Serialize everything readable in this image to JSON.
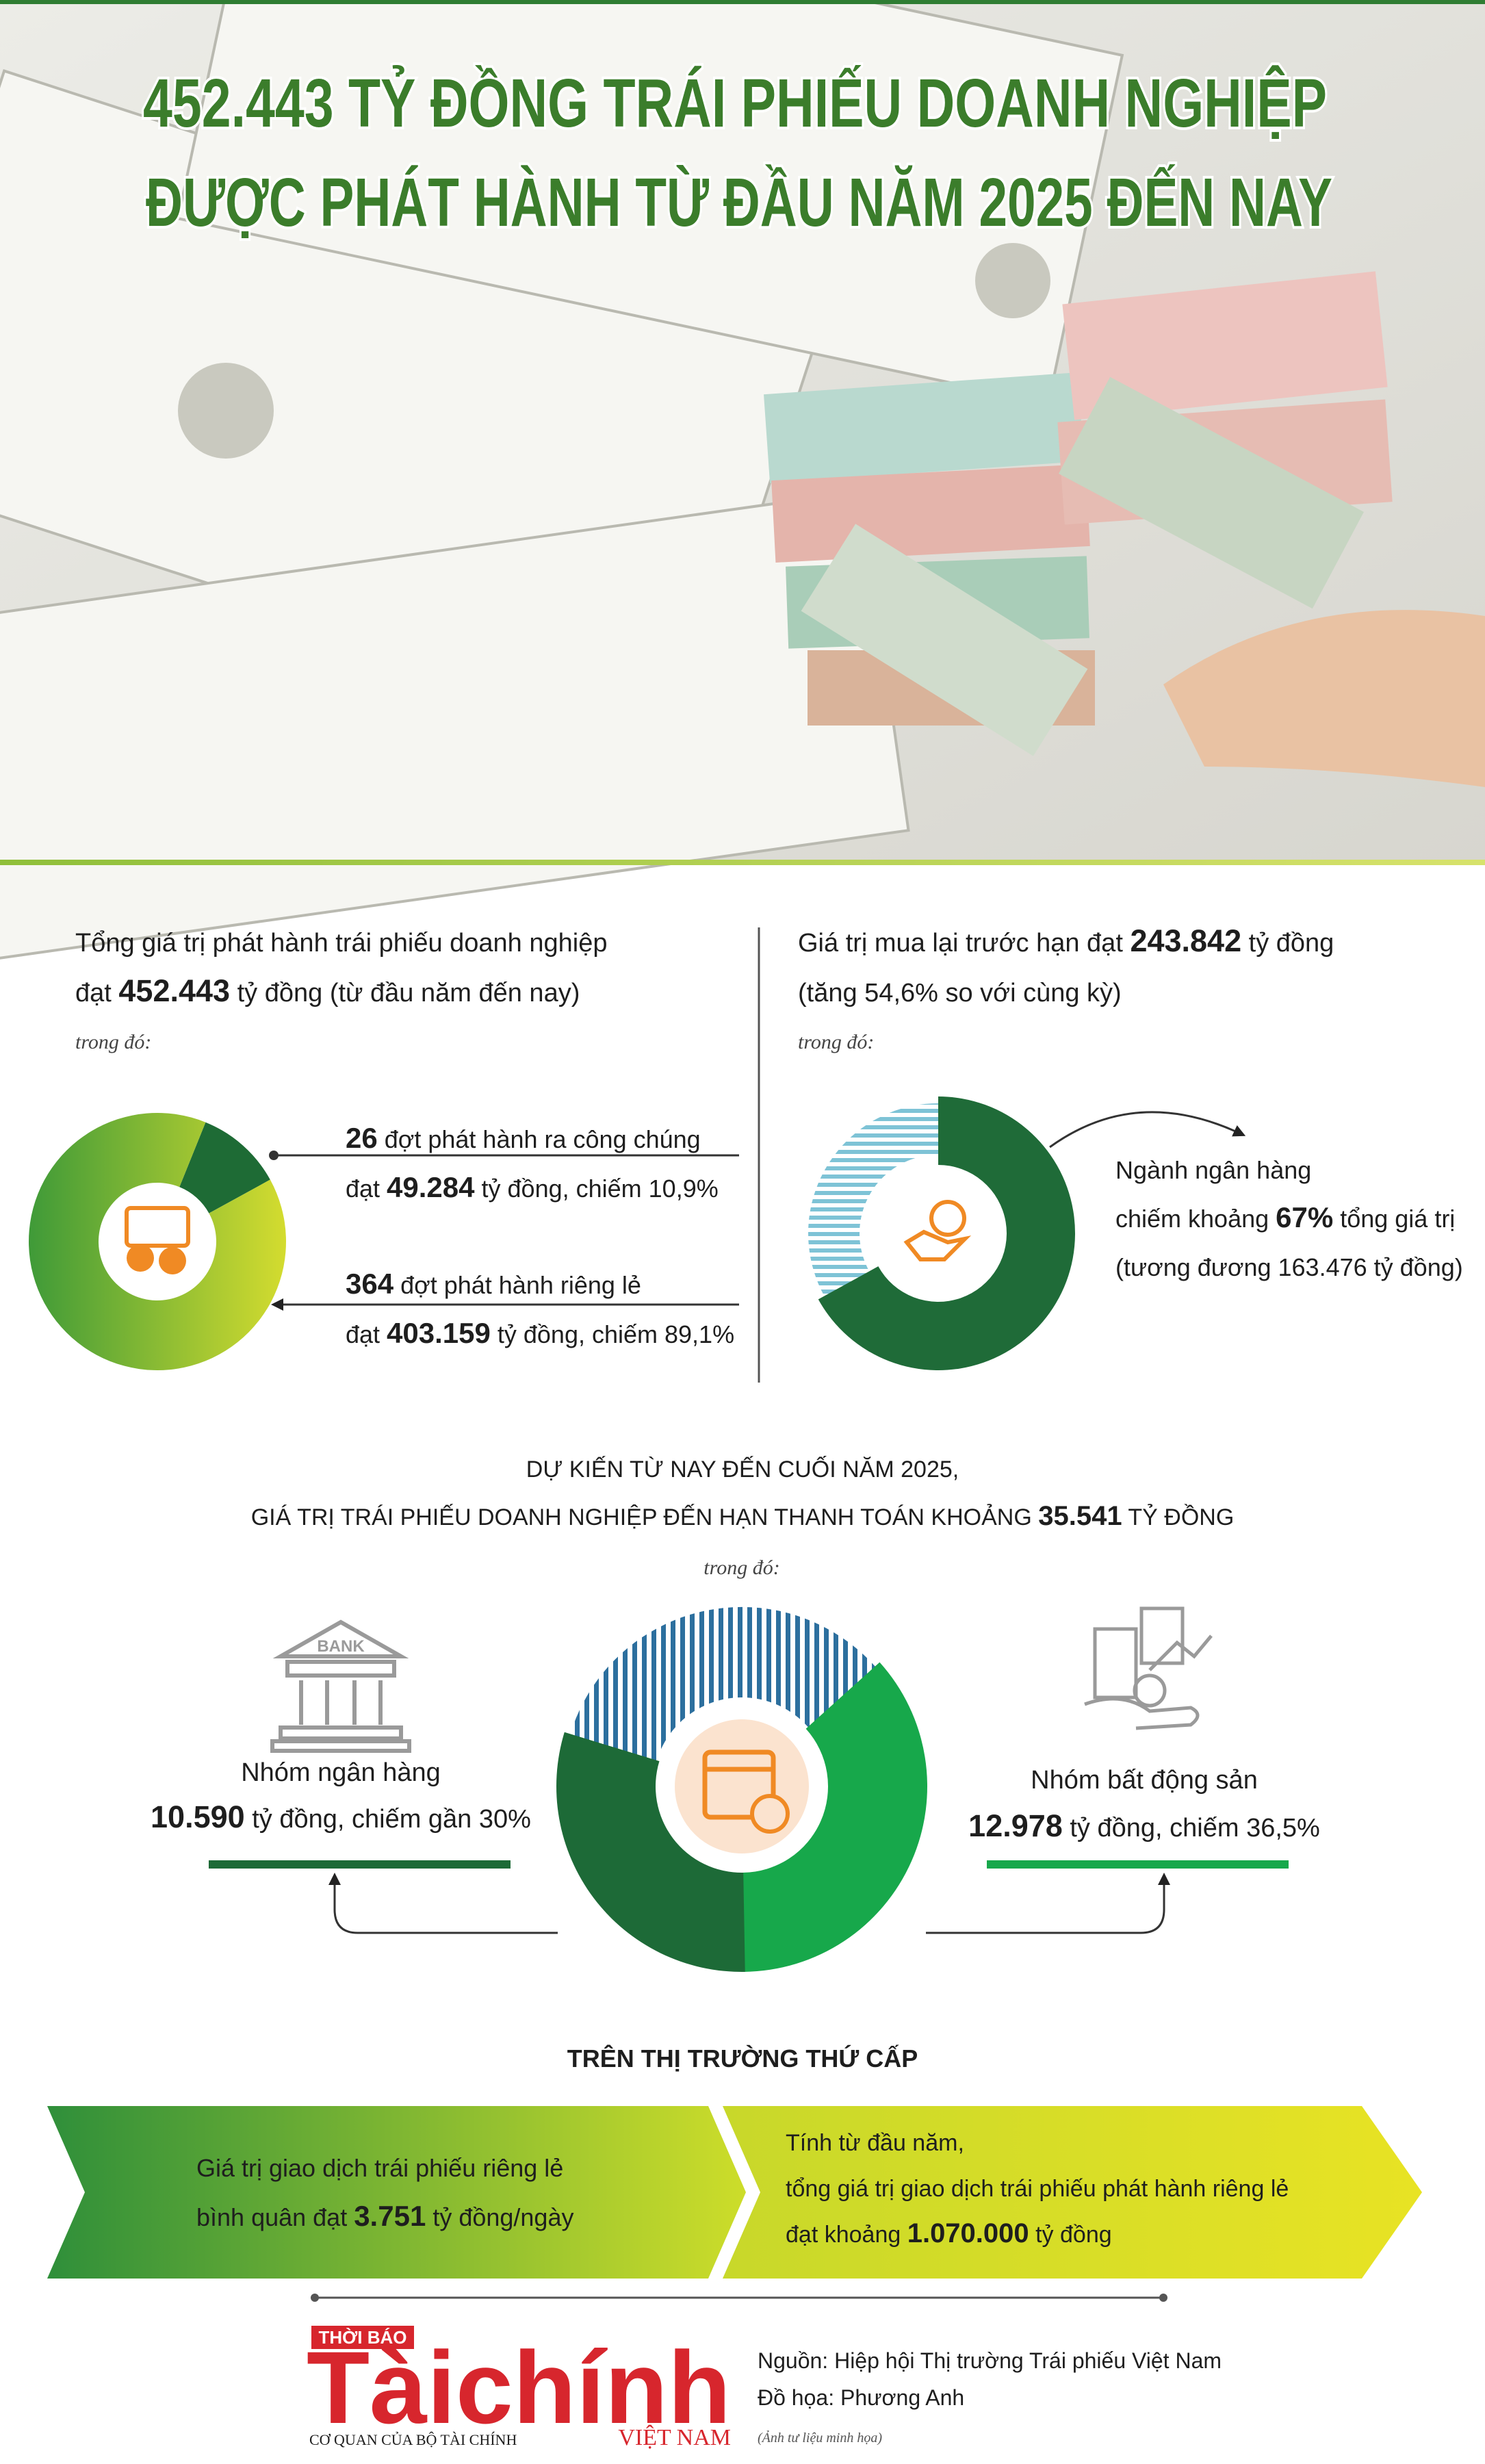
{
  "header": {
    "title": [
      "452.443 TỶ ĐỒNG TRÁI PHIẾU DOANH NGHIỆP",
      "ĐƯỢC PHÁT HÀNH TỪ ĐẦU NĂM 2025 ĐẾN NAY"
    ]
  },
  "issuance": {
    "lines": [
      [
        {
          "text": "Tổng giá trị phát hành trái phiếu doanh nghiệp"
        }
      ],
      [
        {
          "text": "đạt "
        },
        {
          "text": "452.443",
          "bold": true
        },
        {
          "text": " tỷ đồng (từ đầu năm đến nay)"
        }
      ]
    ],
    "note": "trong đó:",
    "public": [
      [
        {
          "text": "26",
          "bold": true
        },
        {
          "text": " đợt phát hành ra công chúng"
        }
      ],
      [
        {
          "text": "đạt "
        },
        {
          "text": "49.284",
          "bold": true
        },
        {
          "text": " tỷ đồng, chiếm "
        },
        {
          "value": 10.9,
          "label": "10,9%"
        }
      ]
    ],
    "private": [
      [
        {
          "text": "364",
          "bold": true
        },
        {
          "text": " đợt phát hành riêng lẻ"
        }
      ],
      [
        {
          "text": "đạt "
        },
        {
          "text": "403.159",
          "bold": true
        },
        {
          "text": " tỷ đồng, chiếm "
        },
        {
          "value": 89.1,
          "label": "89,1%"
        }
      ]
    ]
  },
  "buyback": {
    "lines": [
      [
        {
          "text": "Giá trị mua lại trước hạn đạt "
        },
        {
          "text": "243.842",
          "bold": true
        },
        {
          "text": " tỷ đồng"
        }
      ],
      [
        {
          "text": "(tăng 54,6% so với cùng kỳ)"
        }
      ]
    ],
    "note": "trong đó:",
    "bank": [
      [
        {
          "text": "Ngành ngân hàng"
        }
      ],
      [
        {
          "text": "chiếm khoảng "
        },
        {
          "value": 67,
          "label": "67%",
          "bold": true
        },
        {
          "text": " tổng giá trị"
        }
      ],
      [
        {
          "text": "(tương đương 163.476 tỷ đồng)"
        }
      ]
    ]
  },
  "maturity": {
    "heading": [
      [
        {
          "text": "DỰ KIẾN TỪ NAY ĐẾN CUỐI NĂM 2025,"
        }
      ],
      [
        {
          "text": "GIÁ TRỊ TRÁI PHIẾU DOANH NGHIỆP ĐẾN HẠN THANH TOÁN KHOẢNG "
        },
        {
          "text": "35.541",
          "bold": true
        },
        {
          "text": " TỶ ĐỒNG"
        }
      ]
    ],
    "note": "trong đó:",
    "bank_icon": "BANK",
    "bank": [
      [
        {
          "text": "Nhóm ngân hàng"
        }
      ],
      [
        {
          "text": "10.590",
          "bold": true
        },
        {
          "text": " tỷ đồng, chiếm gần "
        },
        {
          "value": 30,
          "label": "30%"
        }
      ]
    ],
    "real_estate": [
      [
        {
          "text": "Nhóm bất động sản"
        }
      ],
      [
        {
          "text": "12.978",
          "bold": true
        },
        {
          "text": " tỷ đồng, chiếm "
        },
        {
          "value": 36.5,
          "label": "36,5%"
        }
      ]
    ]
  },
  "secondary": {
    "heading": "TRÊN THỊ TRƯỜNG THỨ CẤP",
    "daily": [
      [
        {
          "text": "Giá trị giao dịch trái phiếu riêng lẻ"
        }
      ],
      [
        {
          "text": "bình quân đạt "
        },
        {
          "text": "3.751",
          "bold": true
        },
        {
          "text": " tỷ đồng/ngày"
        }
      ]
    ],
    "ytd": [
      [
        {
          "text": "Tính từ đầu năm,"
        }
      ],
      [
        {
          "text": "tổng giá trị giao dịch trái phiếu phát hành riêng lẻ"
        }
      ],
      [
        {
          "text": "đạt khoảng "
        },
        {
          "text": "1.070.000",
          "bold": true
        },
        {
          "text": " tỷ đồng"
        }
      ]
    ]
  },
  "footer": {
    "logo": {
      "top": "THỜI BÁO",
      "name": "Tàichính",
      "country": "VIỆT NAM",
      "tagline": "CƠ QUAN CỦA BỘ TÀI CHÍNH"
    },
    "source": "Nguồn: Hiệp hội Thị trường Trái phiếu Việt Nam",
    "design": "Đồ họa: Phương Anh",
    "photo_note": "(Ảnh tư liệu minh họa)"
  }
}
